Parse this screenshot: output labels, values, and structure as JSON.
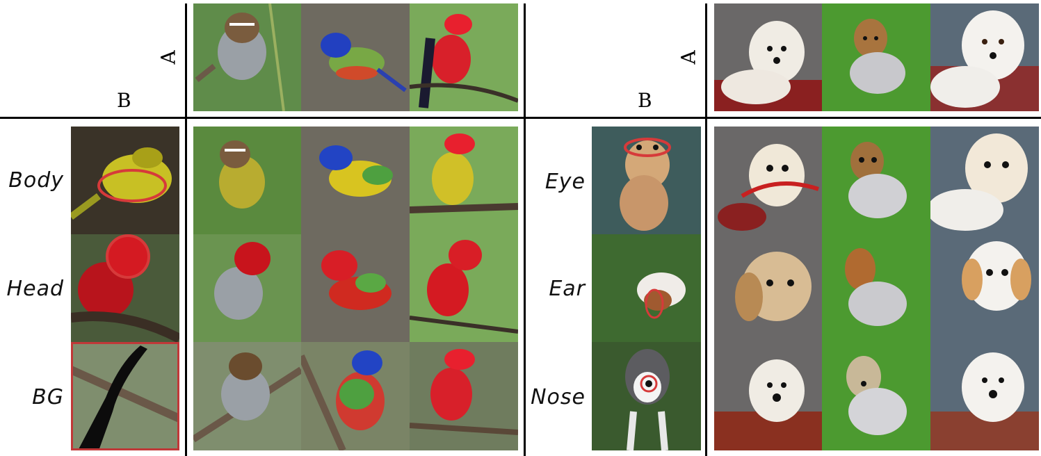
{
  "figure": {
    "left_panel": {
      "axis_a_label": "A",
      "axis_b_label": "B",
      "row_labels": [
        "Body",
        "Head",
        "BG"
      ]
    },
    "right_panel": {
      "axis_a_label": "A",
      "axis_b_label": "B",
      "row_labels": [
        "Eye",
        "Ear",
        "Nose"
      ]
    }
  },
  "colors": {
    "divider": "#000000",
    "highlight": "#d63a3a"
  }
}
